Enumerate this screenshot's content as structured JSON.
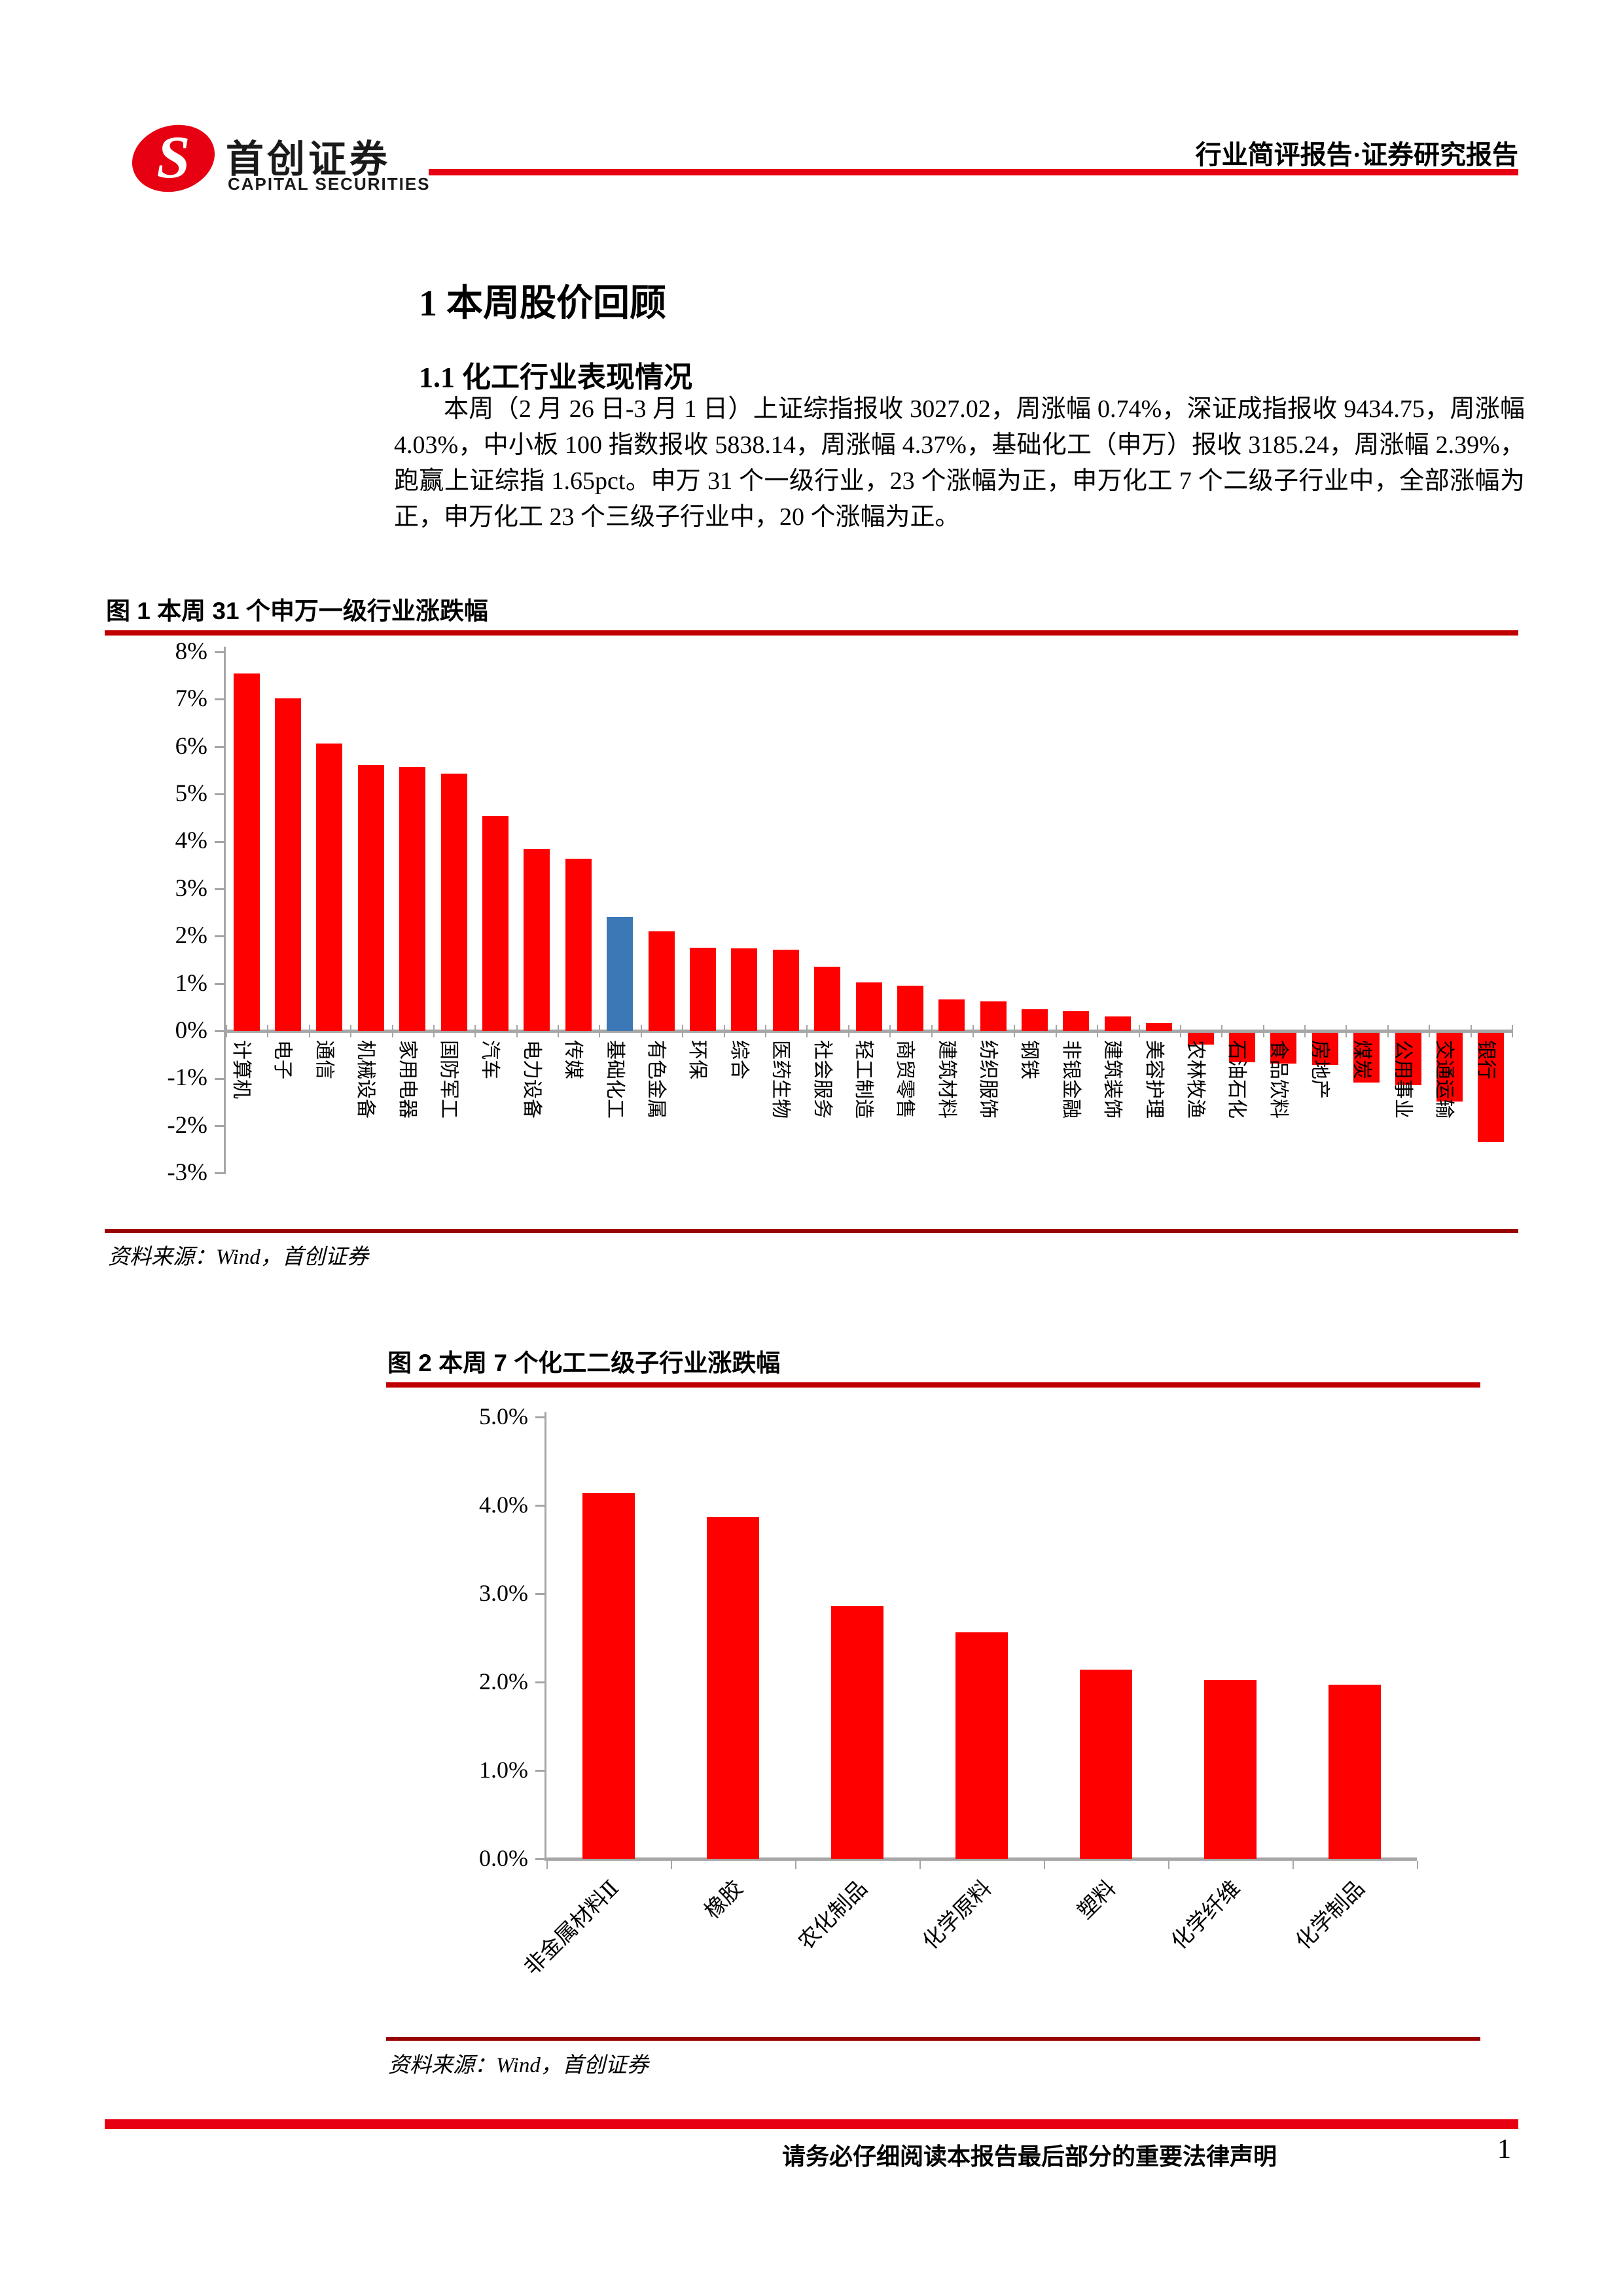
{
  "header": {
    "logo": {
      "cn": "首创证券",
      "en": "CAPITAL SECURITIES"
    },
    "doc_type": "行业简评报告·证券研究报告"
  },
  "section": {
    "h1": "1 本周股价回顾",
    "h2": "1.1 化工行业表现情况",
    "paragraph": "本周（2 月 26 日-3 月 1 日）上证综指报收 3027.02，周涨幅 0.74%，深证成指报收 9434.75，周涨幅 4.03%，中小板 100 指数报收 5838.14，周涨幅 4.37%，基础化工（申万）报收 3185.24，周涨幅 2.39%，跑赢上证综指 1.65pct。申万 31 个一级行业，23 个涨幅为正，申万化工 7 个二级子行业中，全部涨幅为正，申万化工 23 个三级子行业中，20 个涨幅为正。"
  },
  "figure1": {
    "title": "图 1 本周 31 个申万一级行业涨跌幅",
    "source": "资料来源：Wind，首创证券"
  },
  "figure2": {
    "title": "图 2 本周 7 个化工二级子行业涨跌幅",
    "source": "资料来源：Wind，首创证券"
  },
  "footer": {
    "disclaimer": "请务必仔细阅读本报告最后部分的重要法律声明",
    "page_number": "1"
  },
  "colors": {
    "bar_red": "#FF0000",
    "bar_blue": "#3B78B5",
    "brand_red": "#E60012",
    "figure_rule_red": "#C00000",
    "source_rule_red": "#990000",
    "axis_gray": "#A6A6A6"
  },
  "chart_data": [
    {
      "type": "bar",
      "title": "本周31个申万一级行业涨跌幅",
      "xlabel": "",
      "ylabel": "",
      "ylim": [
        -3,
        8
      ],
      "grid": false,
      "legend": "none",
      "ytick_labels": [
        "8%",
        "7%",
        "6%",
        "5%",
        "4%",
        "3%",
        "2%",
        "1%",
        "0%",
        "-1%",
        "-2%",
        "-3%"
      ],
      "categories": [
        "计算机",
        "电子",
        "通信",
        "机械设备",
        "家用电器",
        "国防军工",
        "汽车",
        "电力设备",
        "传媒",
        "基础化工",
        "有色金属",
        "环保",
        "综合",
        "医药生物",
        "社会服务",
        "轻工制造",
        "商贸零售",
        "建筑材料",
        "纺织服饰",
        "钢铁",
        "非银金融",
        "建筑装饰",
        "美容护理",
        "农林牧渔",
        "石油石化",
        "食品饮料",
        "房地产",
        "煤炭",
        "公用事业",
        "交通运输",
        "银行"
      ],
      "values": [
        7.55,
        7.02,
        6.06,
        5.61,
        5.57,
        5.43,
        4.54,
        3.84,
        3.64,
        2.4,
        2.1,
        1.76,
        1.75,
        1.72,
        1.36,
        1.03,
        0.96,
        0.66,
        0.63,
        0.46,
        0.42,
        0.31,
        0.17,
        -0.25,
        -0.62,
        -0.65,
        -0.68,
        -1.05,
        -1.1,
        -1.45,
        -2.3
      ],
      "highlight_index": 9
    },
    {
      "type": "bar",
      "title": "本周7个化工二级子行业涨跌幅",
      "xlabel": "",
      "ylabel": "",
      "ylim": [
        0,
        5
      ],
      "grid": false,
      "legend": "none",
      "ytick_labels": [
        "5.0%",
        "4.0%",
        "3.0%",
        "2.0%",
        "1.0%",
        "0.0%"
      ],
      "categories": [
        "非金属材料Ⅱ",
        "橡胶",
        "农化制品",
        "化学原料",
        "塑料",
        "化学纤维",
        "化学制品"
      ],
      "values": [
        4.14,
        3.87,
        2.86,
        2.56,
        2.14,
        2.02,
        1.97
      ],
      "highlight_index": -1
    }
  ]
}
